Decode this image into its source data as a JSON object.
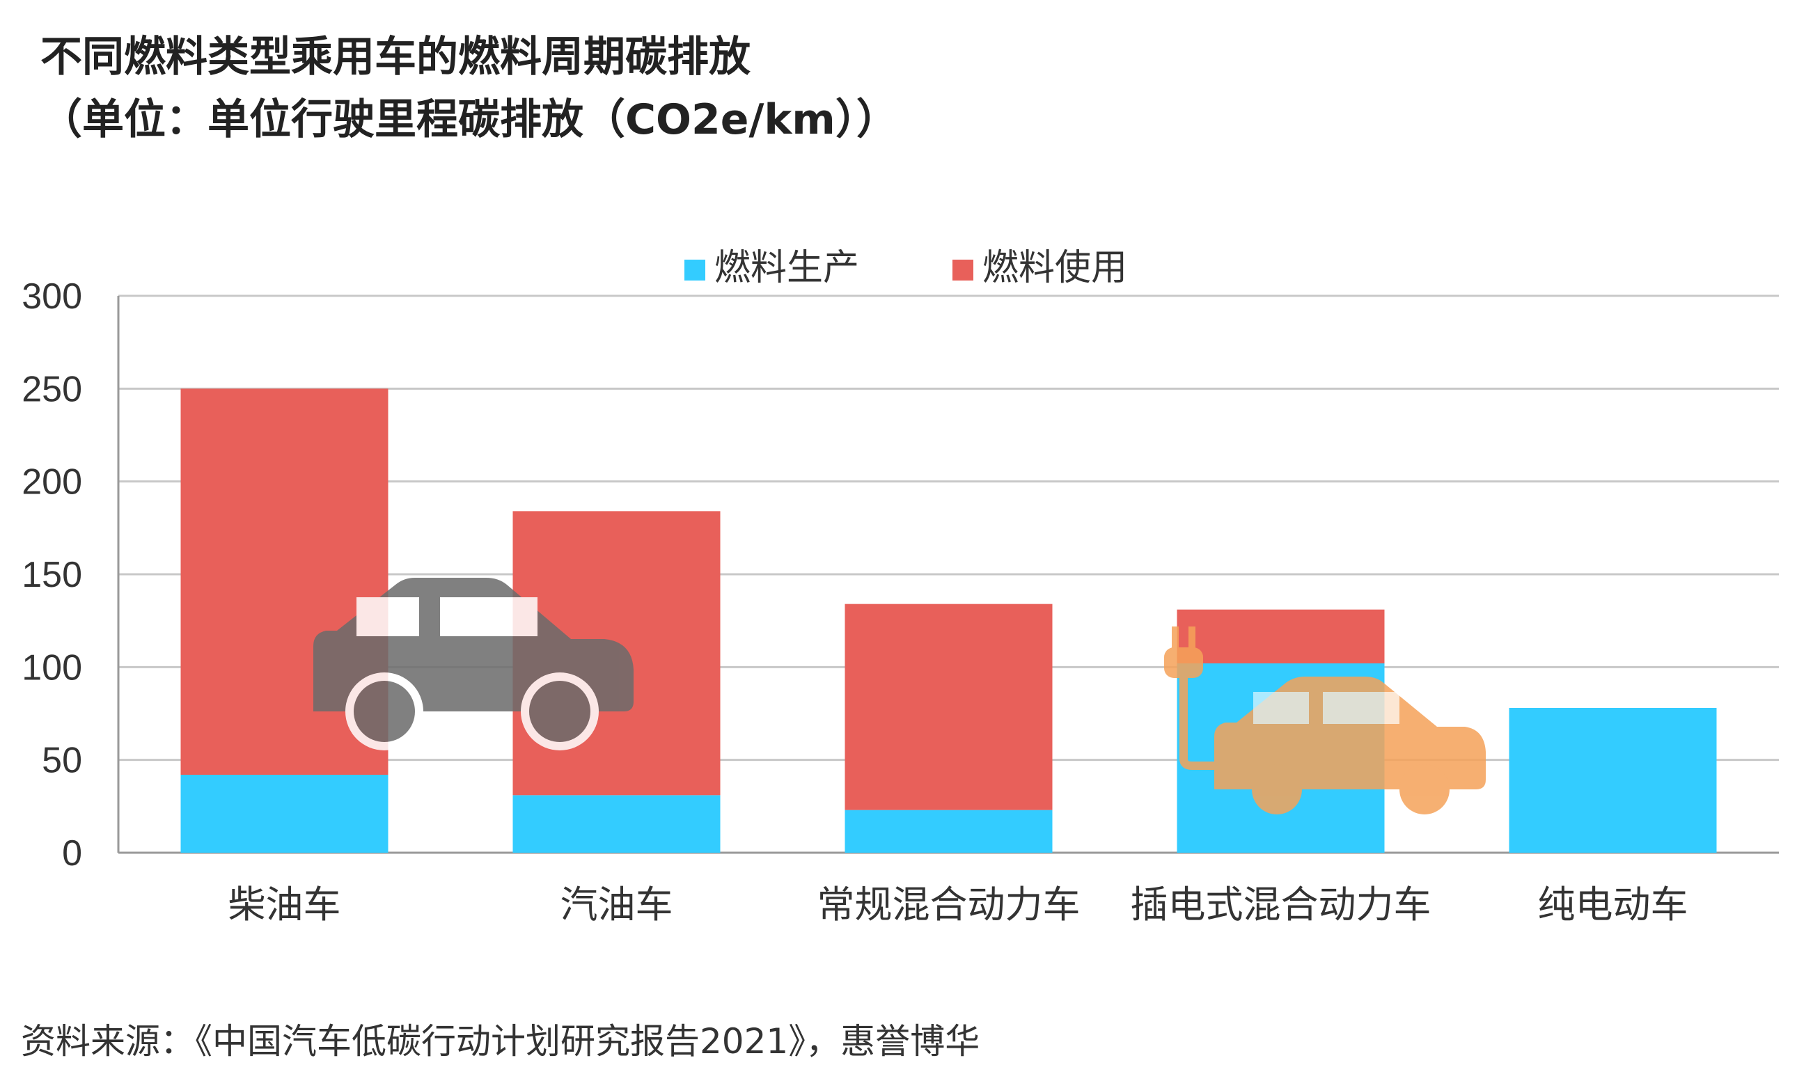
{
  "title": "不同燃料类型乘用车的燃料周期碳排放",
  "subtitle": "（单位：单位行驶里程碳排放（CO2e/km））",
  "source": "资料来源：《中国汽车低碳行动计划研究报告2021》，惠誉博华",
  "colors": {
    "production": "#33CCFF",
    "usage": "#E8605A",
    "grid": "#C8C8C8",
    "axis": "#999999",
    "car_icon": "#6B6B6B",
    "ev_icon": "#F5A259"
  },
  "icons": [
    "car-icon",
    "ev-car-plug-icon"
  ],
  "chart_data": {
    "type": "bar",
    "stacked": true,
    "categories": [
      "柴油车",
      "汽油车",
      "常规混合动力车",
      "插电式混合动力车",
      "纯电动车"
    ],
    "series": [
      {
        "name": "燃料生产",
        "values": [
          42,
          31,
          23,
          102,
          78
        ]
      },
      {
        "name": "燃料使用",
        "values": [
          208,
          153,
          111,
          29,
          0
        ]
      }
    ],
    "ylim": [
      0,
      300
    ],
    "yticks": [
      "0",
      "50",
      "100",
      "150",
      "200",
      "250",
      "300"
    ],
    "grid": true,
    "legend": "top-center"
  }
}
